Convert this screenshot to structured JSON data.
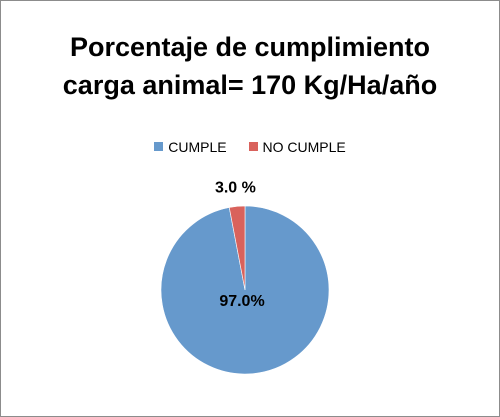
{
  "chart_data": {
    "type": "pie",
    "title_lines": [
      "Porcentaje de cumplimiento",
      "carga animal= 170 Kg/Ha/año"
    ],
    "slices": [
      {
        "name": "CUMPLE",
        "value": 97.0,
        "label": "97.0%",
        "color": "#6699cc"
      },
      {
        "name": "NO CUMPLE",
        "value": 3.0,
        "label": "3.0 %",
        "color": "#d9625c"
      }
    ],
    "legend": {
      "placement": "top",
      "entries": [
        "CUMPLE",
        "NO CUMPLE"
      ]
    }
  }
}
